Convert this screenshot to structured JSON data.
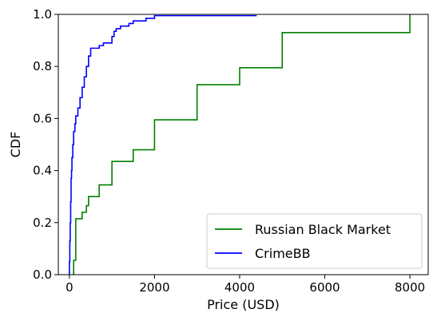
{
  "chart_data": {
    "type": "line",
    "xlabel": "Price (USD)",
    "ylabel": "CDF",
    "xlim": [
      -260,
      8430
    ],
    "ylim": [
      0,
      1.0
    ],
    "xticks": [
      0,
      2000,
      4000,
      6000,
      8000
    ],
    "xtick_labels": [
      "0",
      "2000",
      "4000",
      "6000",
      "8000"
    ],
    "yticks": [
      0.0,
      0.2,
      0.4,
      0.6,
      0.8,
      1.0
    ],
    "ytick_labels": [
      "0.0",
      "0.2",
      "0.4",
      "0.6",
      "0.8",
      "1.0"
    ],
    "grid": false,
    "legend_position": "lower-right",
    "series": [
      {
        "name": "Russian Black Market",
        "color": "#008000",
        "step": "post",
        "points": [
          [
            100,
            0.0
          ],
          [
            100,
            0.055
          ],
          [
            150,
            0.055
          ],
          [
            150,
            0.215
          ],
          [
            300,
            0.215
          ],
          [
            300,
            0.24
          ],
          [
            400,
            0.24
          ],
          [
            400,
            0.265
          ],
          [
            450,
            0.265
          ],
          [
            450,
            0.3
          ],
          [
            700,
            0.3
          ],
          [
            700,
            0.345
          ],
          [
            1000,
            0.345
          ],
          [
            1000,
            0.435
          ],
          [
            1500,
            0.435
          ],
          [
            1500,
            0.48
          ],
          [
            2000,
            0.48
          ],
          [
            2000,
            0.595
          ],
          [
            3000,
            0.595
          ],
          [
            3000,
            0.73
          ],
          [
            4000,
            0.73
          ],
          [
            4000,
            0.795
          ],
          [
            5000,
            0.795
          ],
          [
            5000,
            0.93
          ],
          [
            8000,
            0.93
          ],
          [
            8000,
            1.0
          ]
        ]
      },
      {
        "name": "CrimeBB",
        "color": "#0000ff",
        "step": "post",
        "points": [
          [
            0,
            0.0
          ],
          [
            0,
            0.05
          ],
          [
            10,
            0.05
          ],
          [
            10,
            0.13
          ],
          [
            20,
            0.13
          ],
          [
            20,
            0.2
          ],
          [
            30,
            0.2
          ],
          [
            30,
            0.28
          ],
          [
            40,
            0.28
          ],
          [
            40,
            0.37
          ],
          [
            50,
            0.37
          ],
          [
            50,
            0.4
          ],
          [
            60,
            0.4
          ],
          [
            60,
            0.45
          ],
          [
            80,
            0.45
          ],
          [
            80,
            0.5
          ],
          [
            100,
            0.5
          ],
          [
            100,
            0.55
          ],
          [
            130,
            0.55
          ],
          [
            130,
            0.58
          ],
          [
            150,
            0.58
          ],
          [
            150,
            0.61
          ],
          [
            200,
            0.61
          ],
          [
            200,
            0.64
          ],
          [
            250,
            0.64
          ],
          [
            250,
            0.68
          ],
          [
            300,
            0.68
          ],
          [
            300,
            0.72
          ],
          [
            350,
            0.72
          ],
          [
            350,
            0.76
          ],
          [
            400,
            0.76
          ],
          [
            400,
            0.8
          ],
          [
            450,
            0.8
          ],
          [
            450,
            0.84
          ],
          [
            500,
            0.84
          ],
          [
            500,
            0.87
          ],
          [
            700,
            0.87
          ],
          [
            700,
            0.88
          ],
          [
            800,
            0.88
          ],
          [
            800,
            0.89
          ],
          [
            1000,
            0.89
          ],
          [
            1000,
            0.915
          ],
          [
            1050,
            0.915
          ],
          [
            1050,
            0.935
          ],
          [
            1100,
            0.935
          ],
          [
            1100,
            0.945
          ],
          [
            1200,
            0.945
          ],
          [
            1200,
            0.955
          ],
          [
            1400,
            0.955
          ],
          [
            1400,
            0.965
          ],
          [
            1500,
            0.965
          ],
          [
            1500,
            0.975
          ],
          [
            1800,
            0.975
          ],
          [
            1800,
            0.985
          ],
          [
            2000,
            0.985
          ],
          [
            2000,
            0.995
          ],
          [
            4400,
            0.995
          ]
        ]
      }
    ]
  }
}
